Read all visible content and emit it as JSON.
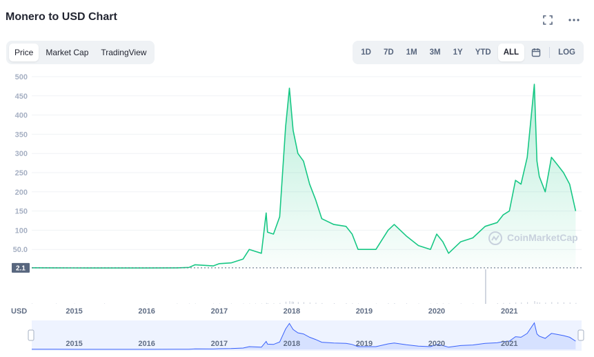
{
  "header": {
    "title": "Monero to USD Chart"
  },
  "icons": {
    "fullscreen": "fullscreen-icon",
    "more": "more-icon",
    "calendar": "calendar-icon"
  },
  "view_tabs": [
    {
      "label": "Price",
      "active": true
    },
    {
      "label": "Market Cap",
      "active": false
    },
    {
      "label": "TradingView",
      "active": false
    }
  ],
  "range_tabs": [
    {
      "label": "1D",
      "active": false
    },
    {
      "label": "7D",
      "active": false
    },
    {
      "label": "1M",
      "active": false
    },
    {
      "label": "3M",
      "active": false
    },
    {
      "label": "1Y",
      "active": false
    },
    {
      "label": "YTD",
      "active": false
    },
    {
      "label": "ALL",
      "active": true
    }
  ],
  "log_label": "LOG",
  "colors": {
    "line": "#16c784",
    "fill": "#16c784",
    "volume": "#c3c9d6",
    "navigator_line": "#3861fb",
    "navigator_fill": "#dbe5ff"
  },
  "chart_data": {
    "type": "area",
    "title": "Monero to USD Chart",
    "ylabel": "USD",
    "ylim": [
      0,
      500
    ],
    "yticks": [
      "500",
      "450",
      "400",
      "350",
      "300",
      "250",
      "200",
      "150",
      "100",
      "50.0"
    ],
    "xticks": [
      "2015",
      "2016",
      "2017",
      "2018",
      "2019",
      "2020",
      "2021"
    ],
    "current_price_label": "2.1",
    "watermark": "CoinMarketCap",
    "grid": true,
    "series": [
      {
        "x": [
          "2014-06",
          "2014-10",
          "2015-01",
          "2015-06",
          "2016-01",
          "2016-06",
          "2016-08",
          "2016-09",
          "2016-12",
          "2017-01",
          "2017-03",
          "2017-05",
          "2017-06",
          "2017-07",
          "2017-08",
          "2017-08-25",
          "2017-09",
          "2017-10",
          "2017-11",
          "2017-12",
          "2017-12-20",
          "2018-01",
          "2018-01-08",
          "2018-02",
          "2018-03",
          "2018-04",
          "2018-05",
          "2018-06",
          "2018-08",
          "2018-10",
          "2018-11",
          "2018-12",
          "2019-03",
          "2019-05",
          "2019-06",
          "2019-08",
          "2019-10",
          "2019-12",
          "2020-01",
          "2020-02",
          "2020-03",
          "2020-05",
          "2020-07",
          "2020-09",
          "2020-11",
          "2020-12",
          "2021-01",
          "2021-02",
          "2021-03",
          "2021-04",
          "2021-05-07",
          "2021-05-20",
          "2021-06",
          "2021-07",
          "2021-08",
          "2021-09",
          "2021-10",
          "2021-11",
          "2021-12"
        ],
        "values": [
          2.1,
          2.0,
          1.8,
          1.7,
          1.6,
          2.0,
          3,
          10,
          7,
          13,
          15,
          25,
          50,
          45,
          40,
          145,
          95,
          90,
          135,
          370,
          470,
          400,
          360,
          300,
          280,
          220,
          180,
          130,
          115,
          110,
          90,
          50,
          50,
          100,
          115,
          85,
          60,
          50,
          90,
          70,
          40,
          70,
          80,
          110,
          120,
          140,
          150,
          230,
          220,
          290,
          480,
          280,
          240,
          200,
          290,
          270,
          250,
          220,
          150
        ]
      }
    ]
  }
}
